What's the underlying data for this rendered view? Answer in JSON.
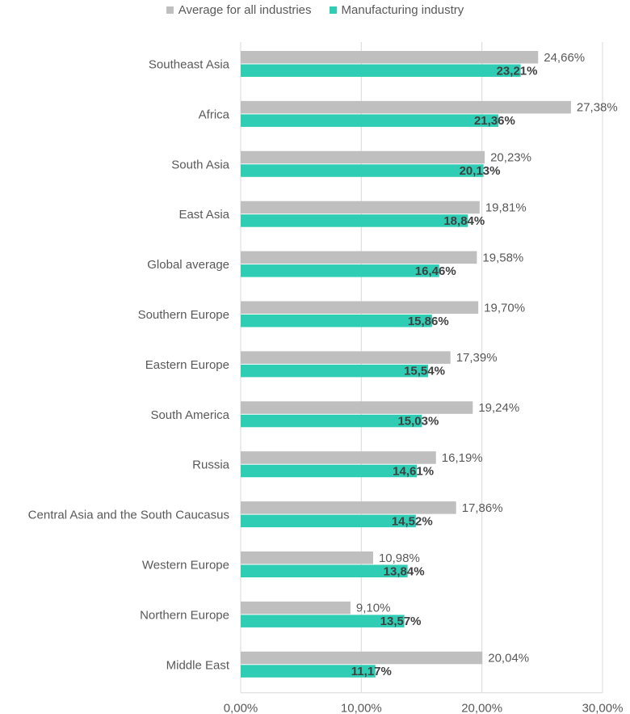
{
  "chart_data": {
    "type": "bar",
    "orientation": "horizontal",
    "categories": [
      "Southeast Asia",
      "Africa",
      "South Asia",
      "East Asia",
      "Global average",
      "Southern Europe",
      "Eastern Europe",
      "South America",
      "Russia",
      "Central Asia and the South Caucasus",
      "Western Europe",
      "Northern Europe",
      "Middle East"
    ],
    "series": [
      {
        "name": "Average for all industries",
        "color": "#bfbfbf",
        "values": [
          24.66,
          27.38,
          20.23,
          19.81,
          19.58,
          19.7,
          17.39,
          19.24,
          16.19,
          17.86,
          10.98,
          9.1,
          20.04
        ],
        "labels": [
          "24,66%",
          "27,38%",
          "20,23%",
          "19,81%",
          "19,58%",
          "19,70%",
          "17,39%",
          "19,24%",
          "16,19%",
          "17,86%",
          "10,98%",
          "9,10%",
          "20,04%"
        ],
        "label_bold": false
      },
      {
        "name": "Manufacturing industry",
        "color": "#2ecdb4",
        "values": [
          23.21,
          21.36,
          20.13,
          18.84,
          16.46,
          15.86,
          15.54,
          15.03,
          14.61,
          14.52,
          13.84,
          13.57,
          11.17
        ],
        "labels": [
          "23,21%",
          "21,36%",
          "20,13%",
          "18,84%",
          "16,46%",
          "15,86%",
          "15,54%",
          "15,03%",
          "14,61%",
          "14,52%",
          "13,84%",
          "13,57%",
          "11,17%"
        ],
        "label_bold": true
      }
    ],
    "xlim": [
      0,
      30
    ],
    "xticks": [
      0,
      10,
      20,
      30
    ],
    "xtick_labels": [
      "0,00%",
      "10,00%",
      "20,00%",
      "30,00%"
    ],
    "grid": true,
    "legend_position": "top-center"
  }
}
